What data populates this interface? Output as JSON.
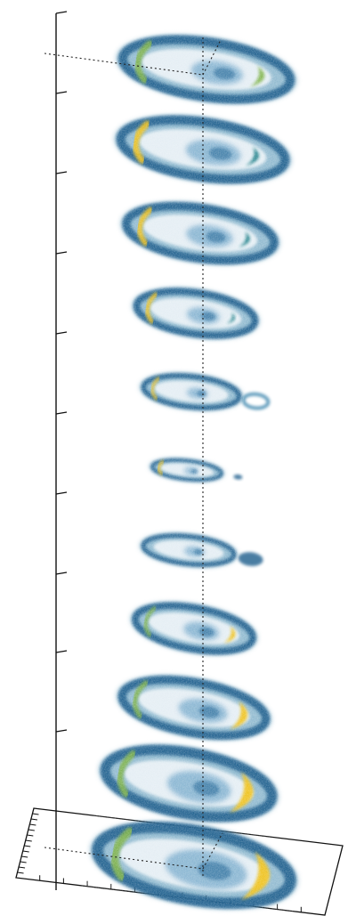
{
  "figure": {
    "kind": "stack of beam cross-section images along a vertical axis",
    "labels": [],
    "colors": {
      "axis": "#111111",
      "guide": "#222222",
      "ring_dark": "#1f5d8c",
      "ring_mid": "#3e86ad",
      "ring_teal": "#1c7f88",
      "core_cloud": "#6fa6c9",
      "core_dense": "#2f6f9e",
      "highlight_green": "#7fb34a",
      "highlight_yellow": "#f0c21c"
    },
    "slice_count": 12,
    "vertical_axis_ticks": 10,
    "base_plane_ticks_per_side": 12
  }
}
